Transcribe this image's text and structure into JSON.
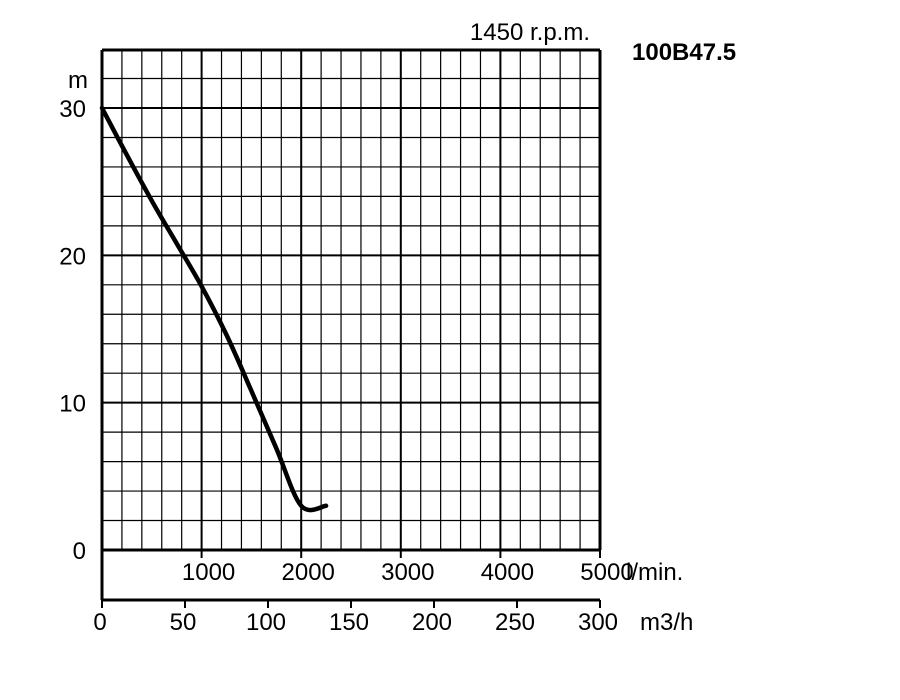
{
  "chart_data": {
    "type": "line",
    "title": "100B47.5",
    "subtitle": "1450 r.p.m.",
    "ylabel": "m",
    "ylim": [
      0,
      30
    ],
    "y_ticks": [
      "30",
      "20",
      "10",
      "0"
    ],
    "y_tick_values": [
      30,
      20,
      10,
      0
    ],
    "x_unit_lpm": "l/min.",
    "x_ticks_lpm": [
      "1000",
      "2000",
      "3000",
      "4000",
      "5000"
    ],
    "x_tick_values_lpm": [
      1000,
      2000,
      3000,
      4000,
      5000
    ],
    "xlim_lpm": [
      0,
      5000
    ],
    "x_unit_m3h": "m3/h",
    "x_ticks_m3h": [
      "0",
      "50",
      "100",
      "150",
      "200",
      "250",
      "300"
    ],
    "x_tick_values_m3h": [
      0,
      50,
      100,
      150,
      200,
      250,
      300
    ],
    "grid": true,
    "series": [
      {
        "x": [
          0,
          250,
          500,
          750,
          1000,
          1250,
          1500,
          1750,
          2000,
          2250
        ],
        "y": [
          30,
          26.8,
          23.7,
          20.8,
          17.9,
          14.6,
          10.8,
          6.9,
          3.0,
          3.0
        ],
        "color": "#000000"
      }
    ]
  }
}
